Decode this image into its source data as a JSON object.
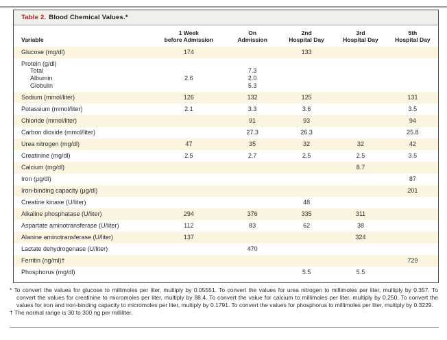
{
  "title": {
    "label": "Table 2.",
    "text": "Blood Chemical Values.*"
  },
  "table": {
    "variable_header": "Variable",
    "columns": [
      {
        "line1": "1 Week",
        "line2": "before Admission"
      },
      {
        "line1": "On",
        "line2": "Admission"
      },
      {
        "line1": "2nd",
        "line2": "Hospital Day"
      },
      {
        "line1": "3rd",
        "line2": "Hospital Day"
      },
      {
        "line1": "5th",
        "line2": "Hospital Day"
      }
    ],
    "rows": [
      {
        "label": "Glucose (mg/dl)",
        "kind": "row",
        "shade": true,
        "values": [
          "174",
          "",
          "133",
          "",
          ""
        ]
      },
      {
        "label": "Protein (g/dl)",
        "kind": "grouphead",
        "shade": false,
        "values": [
          "",
          "",
          "",
          "",
          ""
        ]
      },
      {
        "label": "Total",
        "kind": "sub",
        "shade": false,
        "values": [
          "",
          "7.3",
          "",
          "",
          ""
        ]
      },
      {
        "label": "Albumin",
        "kind": "sub",
        "shade": false,
        "values": [
          "2.6",
          "2.0",
          "",
          "",
          ""
        ]
      },
      {
        "label": "Globulin",
        "kind": "subend",
        "shade": false,
        "values": [
          "",
          "5.3",
          "",
          "",
          ""
        ]
      },
      {
        "label": "Sodium (mmol/liter)",
        "kind": "row",
        "shade": true,
        "values": [
          "126",
          "132",
          "125",
          "",
          "131"
        ]
      },
      {
        "label": "Potassium (mmol/liter)",
        "kind": "row",
        "shade": false,
        "values": [
          "2.1",
          "3.3",
          "3.6",
          "",
          "3.5"
        ]
      },
      {
        "label": "Chloride (mmol/liter)",
        "kind": "row",
        "shade": true,
        "values": [
          "",
          "91",
          "93",
          "",
          "94"
        ]
      },
      {
        "label": "Carbon dioxide (mmol/liter)",
        "kind": "row",
        "shade": false,
        "values": [
          "",
          "27.3",
          "26.3",
          "",
          "25.8"
        ]
      },
      {
        "label": "Urea nitrogen (mg/dl)",
        "kind": "row",
        "shade": true,
        "values": [
          "47",
          "35",
          "32",
          "32",
          "42"
        ]
      },
      {
        "label": "Creatinine (mg/dl)",
        "kind": "row",
        "shade": false,
        "values": [
          "2.5",
          "2.7",
          "2.5",
          "2.5",
          "3.5"
        ]
      },
      {
        "label": "Calcium (mg/dl)",
        "kind": "row",
        "shade": true,
        "values": [
          "",
          "",
          "",
          "8.7",
          ""
        ]
      },
      {
        "label": "Iron (μg/dl)",
        "kind": "row",
        "shade": false,
        "values": [
          "",
          "",
          "",
          "",
          "87"
        ]
      },
      {
        "label": "Iron-binding capacity (μg/dl)",
        "kind": "row",
        "shade": true,
        "values": [
          "",
          "",
          "",
          "",
          "201"
        ]
      },
      {
        "label": "Creatine kinase (U/liter)",
        "kind": "row",
        "shade": false,
        "values": [
          "",
          "",
          "48",
          "",
          ""
        ]
      },
      {
        "label": "Alkaline phosphatase (U/liter)",
        "kind": "row",
        "shade": true,
        "values": [
          "294",
          "376",
          "335",
          "311",
          ""
        ]
      },
      {
        "label": "Aspartate aminotransferase (U/liter)",
        "kind": "row",
        "shade": false,
        "values": [
          "112",
          "83",
          "62",
          "38",
          ""
        ]
      },
      {
        "label": "Alanine aminotransferase (U/liter)",
        "kind": "row",
        "shade": true,
        "values": [
          "137",
          "",
          "",
          "324",
          ""
        ]
      },
      {
        "label": "Lactate dehydrogenase (U/liter)",
        "kind": "row",
        "shade": false,
        "values": [
          "",
          "470",
          "",
          "",
          ""
        ]
      },
      {
        "label": "Ferritin (ng/ml)†",
        "kind": "row",
        "shade": true,
        "values": [
          "",
          "",
          "",
          "",
          "729"
        ]
      },
      {
        "label": "Phosphorus (mg/dl)",
        "kind": "row",
        "shade": false,
        "values": [
          "",
          "",
          "5.5",
          "5.5",
          ""
        ]
      }
    ]
  },
  "footnotes": [
    {
      "marker": "*",
      "text": "To convert the values for glucose to millimoles per liter, multiply by 0.05551. To convert the values for urea nitrogen to millimoles per liter, multiply by 0.357. To convert the values for creatinine to micromoles per liter, multiply by 88.4. To convert the value for calcium to millimoles per liter, multiply by 0.250. To convert the values for iron and iron-binding capacity to micromoles per liter, multiply by 0.1791. To convert the values for phosphorus to millimoles per liter, multiply by 0.3229."
    },
    {
      "marker": "†",
      "text": "The normal range is 30 to 300 ng per milliliter."
    }
  ],
  "colors": {
    "title_accent": "#bb1c20",
    "row_shade": "#fbf4e1",
    "border": "#474747",
    "rule": "#9b9b9b"
  }
}
